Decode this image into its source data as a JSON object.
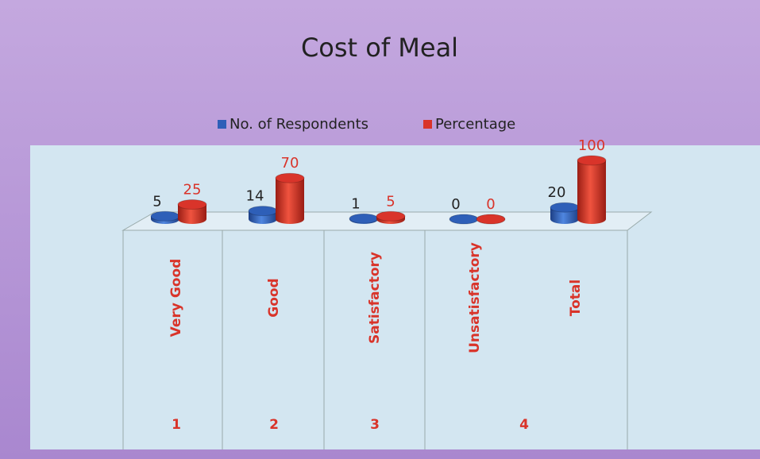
{
  "chart_data": {
    "type": "bar",
    "title": "Cost of Meal",
    "categories": [
      "Very Good",
      "Good",
      "Satisfactory",
      "Unsatisfactory",
      "Total"
    ],
    "series": [
      {
        "name": "No. of Respondents",
        "color": "#2e5fb8",
        "values": [
          5,
          14,
          1,
          0,
          20
        ]
      },
      {
        "name": "Percentage",
        "color": "#d9342a",
        "values": [
          25,
          70,
          5,
          0,
          100
        ]
      }
    ],
    "row_numbers": [
      1,
      2,
      3,
      4
    ],
    "legend": "top"
  }
}
